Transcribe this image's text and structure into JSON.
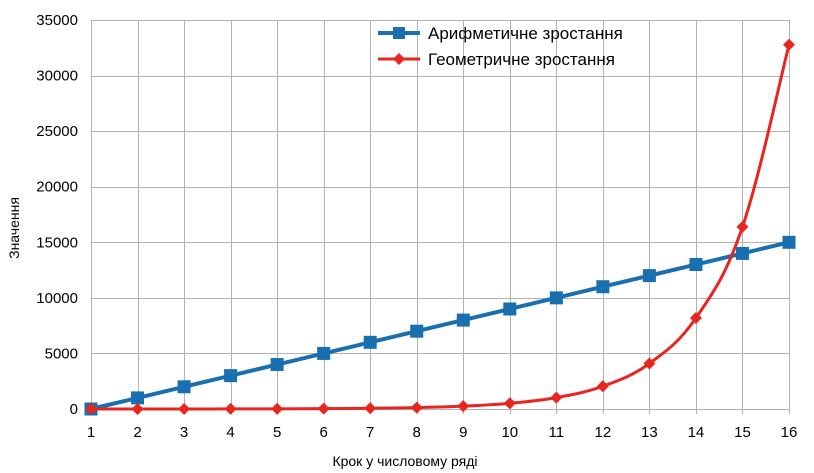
{
  "chart_data": {
    "type": "line",
    "title": "",
    "xlabel": "Крок у числовому ряді",
    "ylabel": "Значення",
    "x": [
      1,
      2,
      3,
      4,
      5,
      6,
      7,
      8,
      9,
      10,
      11,
      12,
      13,
      14,
      15,
      16
    ],
    "ylim": [
      0,
      35000
    ],
    "yticks": [
      0,
      5000,
      10000,
      15000,
      20000,
      25000,
      30000,
      35000
    ],
    "grid": true,
    "legend_position": "top-right",
    "series": [
      {
        "name": "Арифметичне зростання",
        "color": "#1a6fb0",
        "marker": "square",
        "values": [
          0,
          1000,
          2000,
          3000,
          4000,
          5000,
          6000,
          7000,
          8000,
          9000,
          10000,
          11000,
          12000,
          13000,
          14000,
          15000
        ]
      },
      {
        "name": "Геометричне зростання",
        "color": "#e8251f",
        "marker": "diamond",
        "values": [
          1,
          2,
          4,
          8,
          16,
          32,
          64,
          128,
          256,
          512,
          1024,
          2048,
          4096,
          8192,
          16384,
          32768
        ]
      }
    ]
  }
}
